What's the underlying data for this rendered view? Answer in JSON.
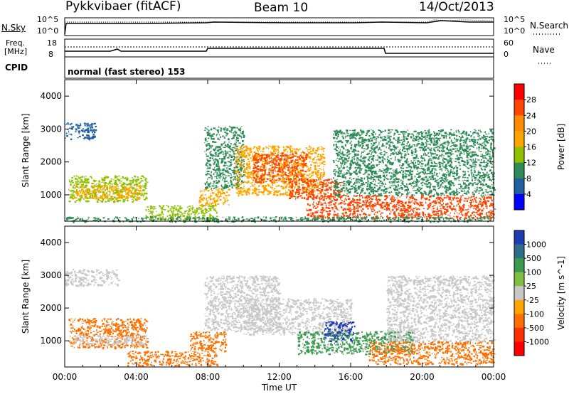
{
  "header": {
    "radar": "Pykkvibaer (fitACF)",
    "beam": "Beam 10",
    "date": "14/Oct/2013"
  },
  "strip1": {
    "left_label": "N.Sky",
    "left_top": "10^5",
    "left_bot": "10^0",
    "right_top": "10^5",
    "right_bot": "10^0",
    "right_label": "N.Search"
  },
  "strip2": {
    "left_label_a": "Freq.",
    "left_label_b": "[MHz]",
    "left_top": "18",
    "left_bot": "8",
    "right_top": "60",
    "right_bot": "0",
    "right_label": "Nave"
  },
  "cpid": {
    "label": "CPID",
    "text": "normal (fast stereo) 153"
  },
  "chart_data": [
    {
      "type": "heatmap",
      "parameter": "Power",
      "ylabel": "Slant Range [km]",
      "xlabel": "Time UT",
      "ylim": [
        200,
        4500
      ],
      "xlim": [
        "00:00",
        "24:00"
      ],
      "yticks": [
        "1000",
        "2000",
        "3000",
        "4000"
      ],
      "xticks": [
        "00:00",
        "04:00",
        "08:00",
        "12:00",
        "16:00",
        "20:00",
        "00:00"
      ],
      "colorbar": {
        "label": "Power [dB]",
        "ticks": [
          "28",
          "24",
          "20",
          "16",
          "12",
          "8",
          "4"
        ],
        "colors": [
          "#ff0000",
          "#ff4500",
          "#ff8c00",
          "#ffa500",
          "#90c000",
          "#2e8b57",
          "#2060a0",
          "#0000ff"
        ]
      },
      "regions": [
        {
          "t0": 0.0,
          "t1": 1.7,
          "r0": 2700,
          "r1": 3200,
          "level": 8
        },
        {
          "t0": 0.2,
          "t1": 4.6,
          "r0": 800,
          "r1": 1600,
          "level": 16
        },
        {
          "t0": 0.5,
          "t1": 4.3,
          "r0": 900,
          "r1": 1300,
          "level": 20
        },
        {
          "t0": 4.5,
          "t1": 8.5,
          "r0": 250,
          "r1": 700,
          "level": 14
        },
        {
          "t0": 7.5,
          "t1": 9.2,
          "r0": 700,
          "r1": 1200,
          "level": 18
        },
        {
          "t0": 7.8,
          "t1": 10.0,
          "r0": 1200,
          "r1": 3100,
          "level": 10
        },
        {
          "t0": 9.5,
          "t1": 14.5,
          "r0": 1000,
          "r1": 2500,
          "level": 20
        },
        {
          "t0": 10.5,
          "t1": 13.5,
          "r0": 1400,
          "r1": 2300,
          "level": 26
        },
        {
          "t0": 12.5,
          "t1": 15.5,
          "r0": 900,
          "r1": 1500,
          "level": 28
        },
        {
          "t0": 13.5,
          "t1": 24.0,
          "r0": 300,
          "r1": 1000,
          "level": 28
        },
        {
          "t0": 15.0,
          "t1": 24.0,
          "r0": 1000,
          "r1": 3000,
          "level": 10
        },
        {
          "t0": 0.0,
          "t1": 24.0,
          "r0": 200,
          "r1": 350,
          "level": 10
        }
      ]
    },
    {
      "type": "heatmap",
      "parameter": "Velocity",
      "ylabel": "Slant Range [km]",
      "xlabel": "Time UT",
      "ylim": [
        200,
        4500
      ],
      "xlim": [
        "00:00",
        "24:00"
      ],
      "yticks": [
        "1000",
        "2000",
        "3000",
        "4000"
      ],
      "xticks": [
        "00:00",
        "04:00",
        "08:00",
        "12:00",
        "16:00",
        "20:00",
        "00:00"
      ],
      "colorbar": {
        "label": "Velocity [m s^-1]",
        "ticks": [
          "1000",
          "500",
          "100",
          "25",
          "-25",
          "-100",
          "-500",
          "-1000"
        ],
        "colors": [
          "#1e3cb4",
          "#2e6e8a",
          "#3a9a50",
          "#80c040",
          "#c8c8c8",
          "#ffa500",
          "#ff7000",
          "#ff3000",
          "#ff0000"
        ]
      },
      "regions": [
        {
          "t0": 0.0,
          "t1": 3.0,
          "r0": 2700,
          "r1": 3200,
          "value": 0
        },
        {
          "t0": 0.2,
          "t1": 4.6,
          "r0": 800,
          "r1": 1700,
          "value": -150
        },
        {
          "t0": 0.5,
          "t1": 4.5,
          "r0": 900,
          "r1": 1200,
          "value": 0
        },
        {
          "t0": 3.5,
          "t1": 8.5,
          "r0": 250,
          "r1": 700,
          "value": -200
        },
        {
          "t0": 7.0,
          "t1": 9.0,
          "r0": 700,
          "r1": 1300,
          "value": -300
        },
        {
          "t0": 7.8,
          "t1": 12.0,
          "r0": 1300,
          "r1": 3000,
          "value": 0
        },
        {
          "t0": 10.0,
          "t1": 16.0,
          "r0": 1200,
          "r1": 2300,
          "value": 0
        },
        {
          "t0": 13.0,
          "t1": 19.5,
          "r0": 600,
          "r1": 1300,
          "value": 300
        },
        {
          "t0": 14.5,
          "t1": 16.2,
          "r0": 1000,
          "r1": 1600,
          "value": 1000
        },
        {
          "t0": 17.0,
          "t1": 24.0,
          "r0": 300,
          "r1": 1000,
          "value": -300
        },
        {
          "t0": 18.0,
          "t1": 24.0,
          "r0": 1000,
          "r1": 3000,
          "value": 0
        }
      ]
    }
  ]
}
